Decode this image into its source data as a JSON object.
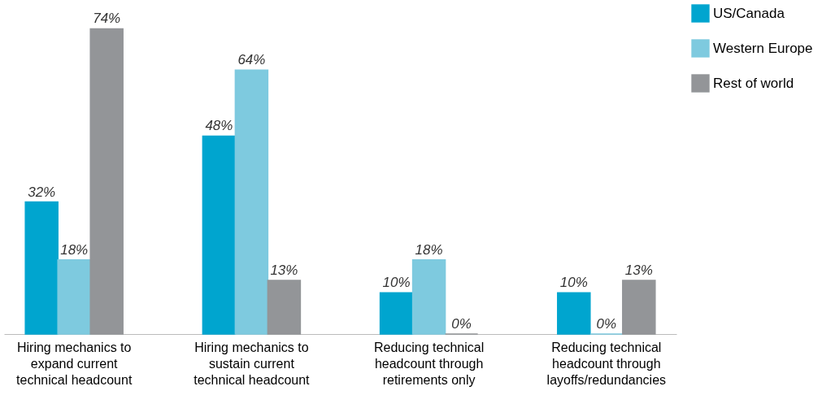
{
  "chart_data": {
    "type": "bar",
    "categories": [
      "Hiring mechanics to expand current technical headcount",
      "Hiring mechanics to sustain current technical headcount",
      "Reducing technical headcount through retirements only",
      "Reducing technical headcount through layoffs/redundancies"
    ],
    "series": [
      {
        "name": "US/Canada",
        "color": "#00a5cf",
        "values": [
          32,
          48,
          10,
          10
        ],
        "value_labels": [
          "32%",
          "48%",
          "10%",
          "10%"
        ]
      },
      {
        "name": "Western Europe",
        "color": "#7ecadf",
        "values": [
          18,
          64,
          18,
          0
        ],
        "value_labels": [
          "18%",
          "64%",
          "18%",
          "0%"
        ]
      },
      {
        "name": "Rest of world",
        "color": "#939598",
        "values": [
          74,
          13,
          0,
          13
        ],
        "value_labels": [
          "74%",
          "13%",
          "0%",
          "13%"
        ]
      }
    ],
    "legend": "right",
    "grid": false
  }
}
